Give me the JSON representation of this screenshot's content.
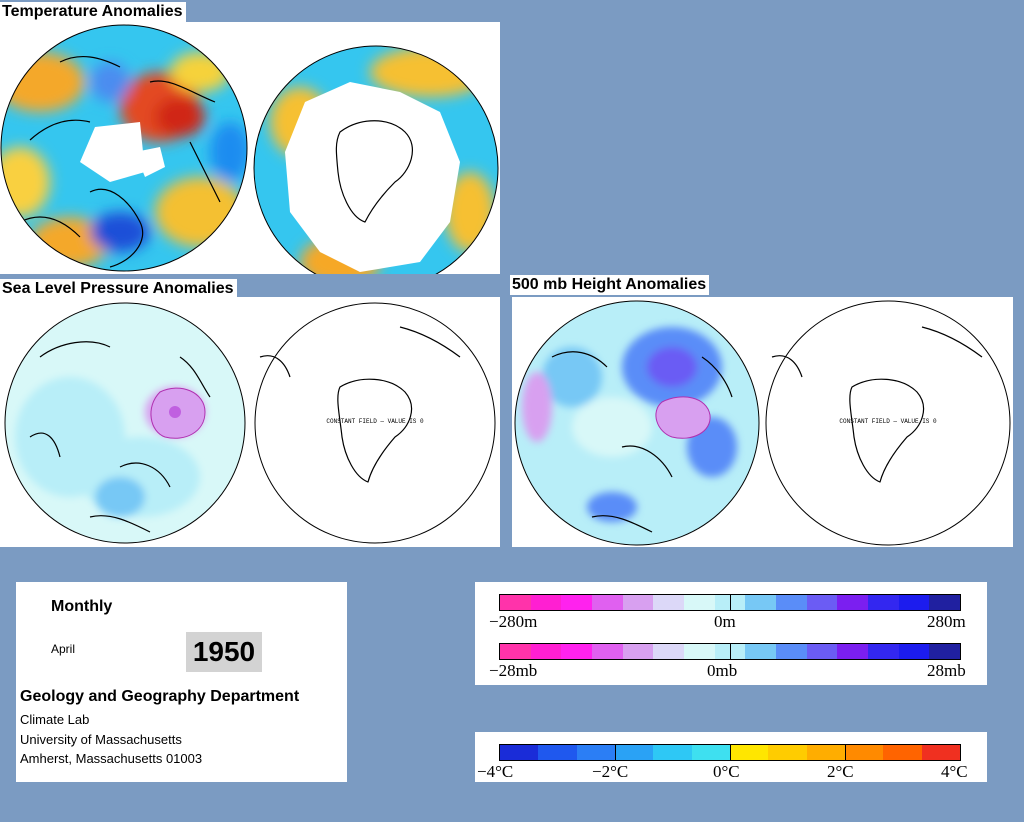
{
  "titles": {
    "temperature": "Temperature Anomalies",
    "slp": "Sea Level Pressure Anomalies",
    "height500": "500 mb Height Anomalies"
  },
  "maps": {
    "constant_field_label": "CONSTANT FIELD — VALUE IS 0"
  },
  "info": {
    "period": "Monthly",
    "month": "April",
    "year": "1950",
    "department": "Geology and Geography Department",
    "lab": "Climate Lab",
    "university": "University of Massachusetts",
    "address": "Amherst, Massachusetts 01003"
  },
  "legends": {
    "height": {
      "labels": [
        "−280m",
        "0m",
        "280m"
      ],
      "colors": [
        "#ff33aa",
        "#ff1fd2",
        "#ff22ee",
        "#e060f0",
        "#d8a0f0",
        "#dcd8f8",
        "#d8f8f8",
        "#b8eef8",
        "#77c8f5",
        "#5a8df8",
        "#6b5cf4",
        "#7b1ff0",
        "#3327f0",
        "#1c1cee",
        "#2020a0"
      ]
    },
    "pressure": {
      "labels": [
        "−28mb",
        "0mb",
        "28mb"
      ],
      "colors": [
        "#ff33aa",
        "#ff1fd2",
        "#ff22ee",
        "#e060f0",
        "#d8a0f0",
        "#dcd8f8",
        "#d8f8f8",
        "#b8eef8",
        "#77c8f5",
        "#5a8df8",
        "#6b5cf4",
        "#7b1ff0",
        "#3327f0",
        "#1c1cee",
        "#2020a0"
      ]
    },
    "temperature": {
      "labels": [
        "−4°C",
        "−2°C",
        "0°C",
        "2°C",
        "4°C"
      ],
      "colors": [
        "#1a2cd8",
        "#1f58ee",
        "#2b7ef5",
        "#2aa2f5",
        "#2ec8f5",
        "#3ee0f0",
        "#ffe600",
        "#ffcc00",
        "#ffad00",
        "#ff8a00",
        "#ff6400",
        "#f03020"
      ]
    }
  }
}
